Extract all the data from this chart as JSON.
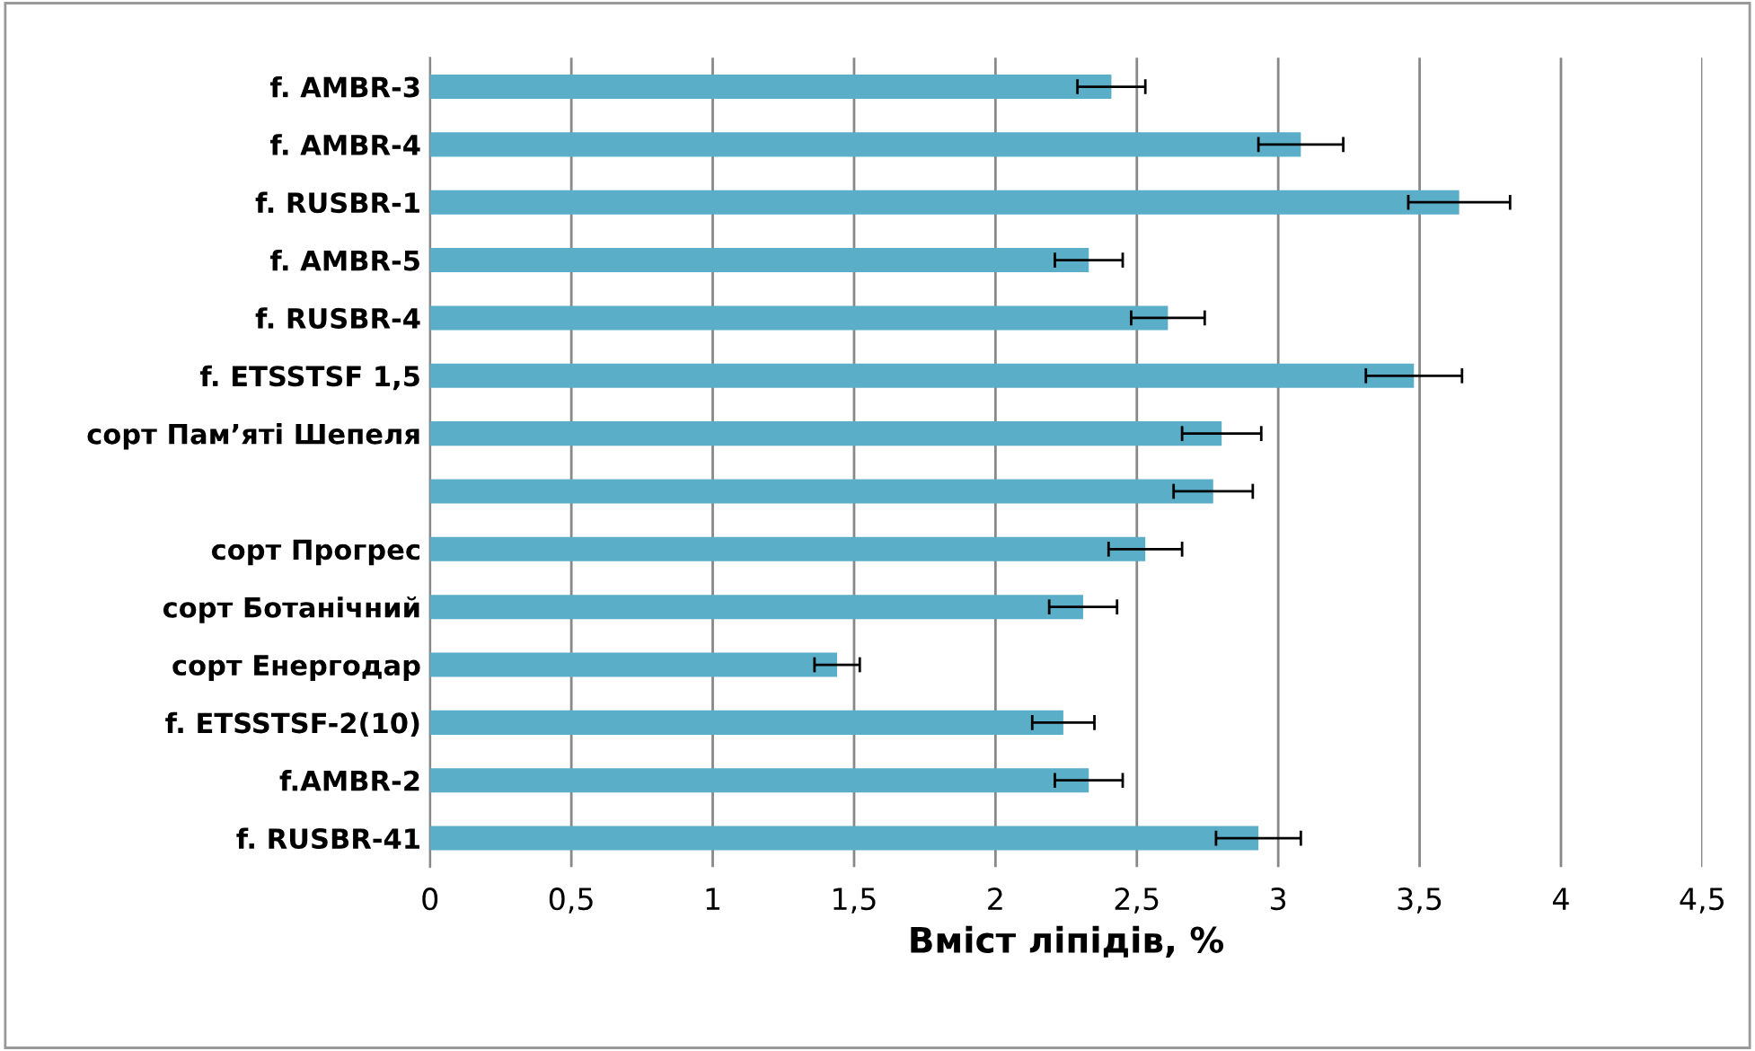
{
  "chart_data": {
    "type": "bar",
    "orientation": "horizontal",
    "xlabel": "Вміст ліпідів, %",
    "categories": [
      "f. AMBR-3",
      "f. AMBR-4",
      "f. RUSBR-1",
      "f. AMBR-5",
      "f. RUSBR-4",
      "f. ETSSTSF 1,5",
      "сорт Пам’яті Шепеля",
      null,
      "сорт Прогрес",
      "сорт Ботанічний",
      "сорт Енергодар",
      "f. ETSSTSF-2(10)",
      "f.AMBR-2",
      "f. RUSBR-41"
    ],
    "values": [
      2.41,
      3.08,
      3.64,
      2.33,
      2.61,
      3.48,
      2.8,
      2.77,
      2.53,
      2.31,
      1.44,
      2.24,
      2.33,
      2.93
    ],
    "errors": [
      0.12,
      0.15,
      0.18,
      0.12,
      0.13,
      0.17,
      0.14,
      0.14,
      0.13,
      0.12,
      0.08,
      0.11,
      0.12,
      0.15
    ],
    "color": "#5aaec8",
    "xlim": [
      0,
      4.5
    ],
    "xticks": [
      0,
      {
        "value": 0.5,
        "label": "0,5"
      },
      1,
      {
        "value": 1.5,
        "label": "1,5"
      },
      2,
      {
        "value": 2.5,
        "label": "2,5"
      },
      3,
      {
        "value": 3.5,
        "label": "3,5"
      },
      4,
      {
        "value": 4.5,
        "label": "4,5"
      }
    ],
    "grid": "x"
  }
}
